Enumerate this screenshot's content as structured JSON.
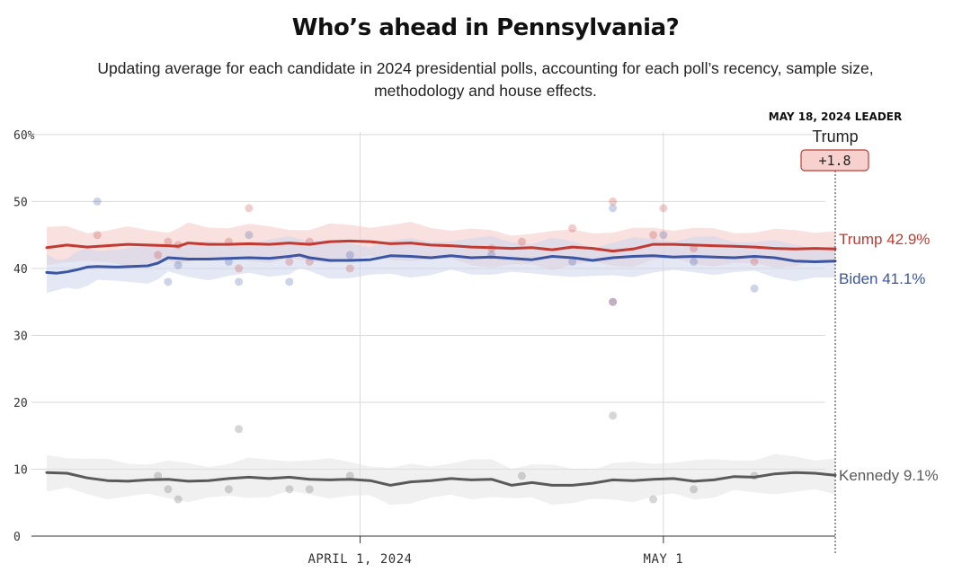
{
  "header": {
    "title": "Who’s ahead in Pennsylvania?",
    "subtitle": "Updating average for each candidate in 2024 presidential polls, accounting for each poll’s recency, sample size, methodology and house effects."
  },
  "leader_box": {
    "heading": "MAY 18, 2024 LEADER",
    "name": "Trump",
    "margin": "+1.8"
  },
  "colors": {
    "trump": "#c23b32",
    "biden": "#3b55a3",
    "kennedy": "#5a5a5a",
    "trump_band": "#f3c9c5",
    "biden_band": "#cdd6ec",
    "kennedy_band": "#e3e3e3",
    "grid": "#d9d9d9"
  },
  "chart_data": {
    "type": "line",
    "title": "Who’s ahead in Pennsylvania?",
    "x_unit": "day index (0 = Mar 1, 2024 ... 78 = May 18, 2024)",
    "xlim": [
      0,
      78
    ],
    "ylim": [
      0,
      62
    ],
    "y_ticks": [
      {
        "value": 0,
        "label": "0"
      },
      {
        "value": 10,
        "label": "10"
      },
      {
        "value": 20,
        "label": "20"
      },
      {
        "value": 30,
        "label": "30"
      },
      {
        "value": 40,
        "label": "40"
      },
      {
        "value": 50,
        "label": "50"
      },
      {
        "value": 60,
        "label": "60%"
      }
    ],
    "x_ticks": [
      {
        "value": 31,
        "label": "APRIL 1, 2024"
      },
      {
        "value": 61,
        "label": "MAY 1"
      }
    ],
    "series": [
      {
        "name": "Trump",
        "key": "trump",
        "end_label": "Trump 42.9%",
        "band_halfwidth": 2.5,
        "values": [
          [
            0,
            43.1
          ],
          [
            2,
            43.5
          ],
          [
            4,
            43.2
          ],
          [
            6,
            43.4
          ],
          [
            8,
            43.6
          ],
          [
            10,
            43.5
          ],
          [
            12,
            43.4
          ],
          [
            13,
            43.3
          ],
          [
            14,
            43.8
          ],
          [
            16,
            43.6
          ],
          [
            18,
            43.6
          ],
          [
            20,
            43.7
          ],
          [
            22,
            43.6
          ],
          [
            24,
            43.8
          ],
          [
            26,
            43.6
          ],
          [
            28,
            44.0
          ],
          [
            30,
            44.1
          ],
          [
            32,
            44.0
          ],
          [
            34,
            43.7
          ],
          [
            36,
            43.8
          ],
          [
            38,
            43.5
          ],
          [
            40,
            43.4
          ],
          [
            42,
            43.2
          ],
          [
            44,
            43.1
          ],
          [
            46,
            43.0
          ],
          [
            48,
            43.1
          ],
          [
            50,
            42.8
          ],
          [
            52,
            43.2
          ],
          [
            54,
            43.0
          ],
          [
            56,
            42.6
          ],
          [
            58,
            42.9
          ],
          [
            60,
            43.6
          ],
          [
            62,
            43.6
          ],
          [
            64,
            43.5
          ],
          [
            66,
            43.4
          ],
          [
            68,
            43.3
          ],
          [
            70,
            43.2
          ],
          [
            72,
            43.0
          ],
          [
            74,
            42.9
          ],
          [
            76,
            43.0
          ],
          [
            78,
            42.9
          ]
        ]
      },
      {
        "name": "Biden",
        "key": "biden",
        "end_label": "Biden 41.1%",
        "band_halfwidth": 2.5,
        "values": [
          [
            0,
            39.4
          ],
          [
            1,
            39.3
          ],
          [
            2,
            39.5
          ],
          [
            3,
            39.8
          ],
          [
            4,
            40.2
          ],
          [
            5,
            40.3
          ],
          [
            7,
            40.2
          ],
          [
            10,
            40.4
          ],
          [
            11,
            40.8
          ],
          [
            12,
            41.6
          ],
          [
            14,
            41.4
          ],
          [
            16,
            41.4
          ],
          [
            18,
            41.5
          ],
          [
            20,
            41.6
          ],
          [
            22,
            41.5
          ],
          [
            24,
            41.8
          ],
          [
            25,
            42.0
          ],
          [
            26,
            41.6
          ],
          [
            28,
            41.2
          ],
          [
            30,
            41.2
          ],
          [
            32,
            41.3
          ],
          [
            34,
            41.9
          ],
          [
            36,
            41.8
          ],
          [
            38,
            41.6
          ],
          [
            40,
            41.9
          ],
          [
            42,
            41.6
          ],
          [
            44,
            41.7
          ],
          [
            46,
            41.5
          ],
          [
            48,
            41.3
          ],
          [
            50,
            41.8
          ],
          [
            52,
            41.6
          ],
          [
            54,
            41.2
          ],
          [
            56,
            41.6
          ],
          [
            58,
            41.8
          ],
          [
            60,
            41.9
          ],
          [
            62,
            41.7
          ],
          [
            64,
            41.8
          ],
          [
            66,
            41.7
          ],
          [
            68,
            41.6
          ],
          [
            70,
            41.8
          ],
          [
            72,
            41.6
          ],
          [
            74,
            41.1
          ],
          [
            76,
            41.0
          ],
          [
            78,
            41.1
          ]
        ]
      },
      {
        "name": "Kennedy",
        "key": "kennedy",
        "end_label": "Kennedy 9.1%",
        "band_halfwidth": 2.6,
        "values": [
          [
            0,
            9.5
          ],
          [
            2,
            9.4
          ],
          [
            4,
            8.7
          ],
          [
            6,
            8.3
          ],
          [
            8,
            8.2
          ],
          [
            10,
            8.4
          ],
          [
            12,
            8.5
          ],
          [
            14,
            8.2
          ],
          [
            16,
            8.3
          ],
          [
            18,
            8.6
          ],
          [
            20,
            8.8
          ],
          [
            22,
            8.6
          ],
          [
            24,
            8.8
          ],
          [
            26,
            8.5
          ],
          [
            28,
            8.4
          ],
          [
            30,
            8.5
          ],
          [
            32,
            8.3
          ],
          [
            34,
            7.6
          ],
          [
            36,
            8.1
          ],
          [
            38,
            8.3
          ],
          [
            40,
            8.6
          ],
          [
            42,
            8.4
          ],
          [
            44,
            8.5
          ],
          [
            46,
            7.6
          ],
          [
            48,
            8.0
          ],
          [
            50,
            7.6
          ],
          [
            52,
            7.6
          ],
          [
            54,
            7.9
          ],
          [
            56,
            8.4
          ],
          [
            58,
            8.3
          ],
          [
            60,
            8.5
          ],
          [
            62,
            8.6
          ],
          [
            64,
            8.2
          ],
          [
            66,
            8.4
          ],
          [
            68,
            8.9
          ],
          [
            70,
            8.8
          ],
          [
            72,
            9.3
          ],
          [
            74,
            9.5
          ],
          [
            76,
            9.4
          ],
          [
            78,
            9.1
          ]
        ]
      }
    ],
    "polls": [
      {
        "series": "biden",
        "x": 5,
        "y": 50
      },
      {
        "series": "trump",
        "x": 5,
        "y": 45
      },
      {
        "series": "trump",
        "x": 11,
        "y": 42
      },
      {
        "series": "trump",
        "x": 12,
        "y": 44
      },
      {
        "series": "biden",
        "x": 12,
        "y": 38
      },
      {
        "series": "trump",
        "x": 13,
        "y": 43.5
      },
      {
        "series": "biden",
        "x": 13,
        "y": 40.5
      },
      {
        "series": "trump",
        "x": 18,
        "y": 44
      },
      {
        "series": "biden",
        "x": 18,
        "y": 41
      },
      {
        "series": "trump",
        "x": 19,
        "y": 40
      },
      {
        "series": "biden",
        "x": 19,
        "y": 38
      },
      {
        "series": "trump",
        "x": 20,
        "y": 49
      },
      {
        "series": "biden",
        "x": 20,
        "y": 45
      },
      {
        "series": "trump",
        "x": 24,
        "y": 41
      },
      {
        "series": "biden",
        "x": 24,
        "y": 38
      },
      {
        "series": "trump",
        "x": 26,
        "y": 41
      },
      {
        "series": "trump",
        "x": 26,
        "y": 44
      },
      {
        "series": "trump",
        "x": 30,
        "y": 40
      },
      {
        "series": "biden",
        "x": 30,
        "y": 42
      },
      {
        "series": "trump",
        "x": 44,
        "y": 43
      },
      {
        "series": "biden",
        "x": 44,
        "y": 42
      },
      {
        "series": "trump",
        "x": 47,
        "y": 44
      },
      {
        "series": "trump",
        "x": 52,
        "y": 46
      },
      {
        "series": "biden",
        "x": 52,
        "y": 41
      },
      {
        "series": "trump",
        "x": 56,
        "y": 50
      },
      {
        "series": "biden",
        "x": 56,
        "y": 49
      },
      {
        "series": "trump",
        "x": 56,
        "y": 35
      },
      {
        "series": "biden",
        "x": 56,
        "y": 35
      },
      {
        "series": "trump",
        "x": 60,
        "y": 45
      },
      {
        "series": "biden",
        "x": 61,
        "y": 45
      },
      {
        "series": "trump",
        "x": 61,
        "y": 49
      },
      {
        "series": "trump",
        "x": 64,
        "y": 43
      },
      {
        "series": "biden",
        "x": 64,
        "y": 41
      },
      {
        "series": "biden",
        "x": 70,
        "y": 37
      },
      {
        "series": "trump",
        "x": 70,
        "y": 41
      },
      {
        "series": "kennedy",
        "x": 11,
        "y": 9
      },
      {
        "series": "kennedy",
        "x": 12,
        "y": 7
      },
      {
        "series": "kennedy",
        "x": 13,
        "y": 5.5
      },
      {
        "series": "kennedy",
        "x": 18,
        "y": 7
      },
      {
        "series": "kennedy",
        "x": 19,
        "y": 16
      },
      {
        "series": "kennedy",
        "x": 24,
        "y": 7
      },
      {
        "series": "kennedy",
        "x": 26,
        "y": 7
      },
      {
        "series": "kennedy",
        "x": 30,
        "y": 9
      },
      {
        "series": "kennedy",
        "x": 47,
        "y": 9
      },
      {
        "series": "kennedy",
        "x": 56,
        "y": 18
      },
      {
        "series": "kennedy",
        "x": 60,
        "y": 5.5
      },
      {
        "series": "kennedy",
        "x": 64,
        "y": 7
      },
      {
        "series": "kennedy",
        "x": 70,
        "y": 9
      }
    ]
  }
}
